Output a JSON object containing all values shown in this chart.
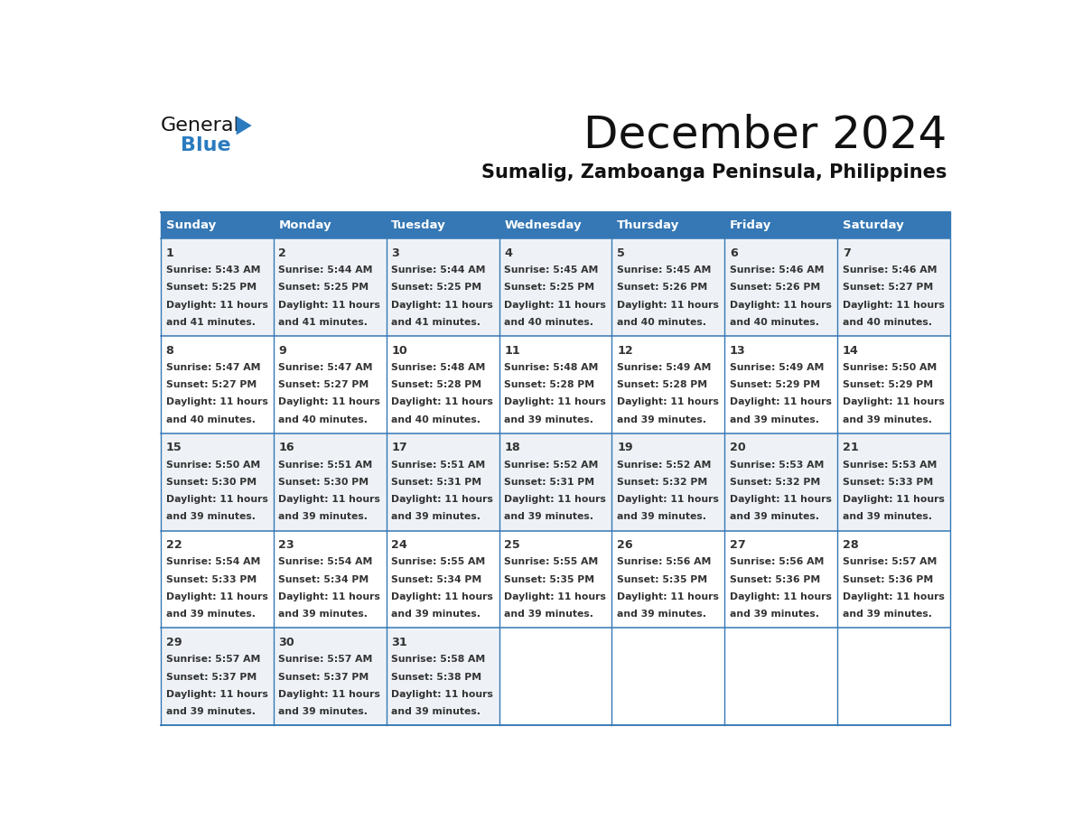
{
  "title": "December 2024",
  "subtitle": "Sumalig, Zamboanga Peninsula, Philippines",
  "header_color": "#3578b5",
  "header_text_color": "#ffffff",
  "cell_bg_color_odd": "#eef2f7",
  "cell_bg_color_even": "#ffffff",
  "text_color": "#333333",
  "border_color": "#3578b5",
  "day_names": [
    "Sunday",
    "Monday",
    "Tuesday",
    "Wednesday",
    "Thursday",
    "Friday",
    "Saturday"
  ],
  "days": [
    {
      "day": 1,
      "col": 0,
      "row": 0,
      "sunrise": "5:43 AM",
      "sunset": "5:25 PM",
      "daylight_h": "11 hours",
      "daylight_m": "and 41 minutes."
    },
    {
      "day": 2,
      "col": 1,
      "row": 0,
      "sunrise": "5:44 AM",
      "sunset": "5:25 PM",
      "daylight_h": "11 hours",
      "daylight_m": "and 41 minutes."
    },
    {
      "day": 3,
      "col": 2,
      "row": 0,
      "sunrise": "5:44 AM",
      "sunset": "5:25 PM",
      "daylight_h": "11 hours",
      "daylight_m": "and 41 minutes."
    },
    {
      "day": 4,
      "col": 3,
      "row": 0,
      "sunrise": "5:45 AM",
      "sunset": "5:25 PM",
      "daylight_h": "11 hours",
      "daylight_m": "and 40 minutes."
    },
    {
      "day": 5,
      "col": 4,
      "row": 0,
      "sunrise": "5:45 AM",
      "sunset": "5:26 PM",
      "daylight_h": "11 hours",
      "daylight_m": "and 40 minutes."
    },
    {
      "day": 6,
      "col": 5,
      "row": 0,
      "sunrise": "5:46 AM",
      "sunset": "5:26 PM",
      "daylight_h": "11 hours",
      "daylight_m": "and 40 minutes."
    },
    {
      "day": 7,
      "col": 6,
      "row": 0,
      "sunrise": "5:46 AM",
      "sunset": "5:27 PM",
      "daylight_h": "11 hours",
      "daylight_m": "and 40 minutes."
    },
    {
      "day": 8,
      "col": 0,
      "row": 1,
      "sunrise": "5:47 AM",
      "sunset": "5:27 PM",
      "daylight_h": "11 hours",
      "daylight_m": "and 40 minutes."
    },
    {
      "day": 9,
      "col": 1,
      "row": 1,
      "sunrise": "5:47 AM",
      "sunset": "5:27 PM",
      "daylight_h": "11 hours",
      "daylight_m": "and 40 minutes."
    },
    {
      "day": 10,
      "col": 2,
      "row": 1,
      "sunrise": "5:48 AM",
      "sunset": "5:28 PM",
      "daylight_h": "11 hours",
      "daylight_m": "and 40 minutes."
    },
    {
      "day": 11,
      "col": 3,
      "row": 1,
      "sunrise": "5:48 AM",
      "sunset": "5:28 PM",
      "daylight_h": "11 hours",
      "daylight_m": "and 39 minutes."
    },
    {
      "day": 12,
      "col": 4,
      "row": 1,
      "sunrise": "5:49 AM",
      "sunset": "5:28 PM",
      "daylight_h": "11 hours",
      "daylight_m": "and 39 minutes."
    },
    {
      "day": 13,
      "col": 5,
      "row": 1,
      "sunrise": "5:49 AM",
      "sunset": "5:29 PM",
      "daylight_h": "11 hours",
      "daylight_m": "and 39 minutes."
    },
    {
      "day": 14,
      "col": 6,
      "row": 1,
      "sunrise": "5:50 AM",
      "sunset": "5:29 PM",
      "daylight_h": "11 hours",
      "daylight_m": "and 39 minutes."
    },
    {
      "day": 15,
      "col": 0,
      "row": 2,
      "sunrise": "5:50 AM",
      "sunset": "5:30 PM",
      "daylight_h": "11 hours",
      "daylight_m": "and 39 minutes."
    },
    {
      "day": 16,
      "col": 1,
      "row": 2,
      "sunrise": "5:51 AM",
      "sunset": "5:30 PM",
      "daylight_h": "11 hours",
      "daylight_m": "and 39 minutes."
    },
    {
      "day": 17,
      "col": 2,
      "row": 2,
      "sunrise": "5:51 AM",
      "sunset": "5:31 PM",
      "daylight_h": "11 hours",
      "daylight_m": "and 39 minutes."
    },
    {
      "day": 18,
      "col": 3,
      "row": 2,
      "sunrise": "5:52 AM",
      "sunset": "5:31 PM",
      "daylight_h": "11 hours",
      "daylight_m": "and 39 minutes."
    },
    {
      "day": 19,
      "col": 4,
      "row": 2,
      "sunrise": "5:52 AM",
      "sunset": "5:32 PM",
      "daylight_h": "11 hours",
      "daylight_m": "and 39 minutes."
    },
    {
      "day": 20,
      "col": 5,
      "row": 2,
      "sunrise": "5:53 AM",
      "sunset": "5:32 PM",
      "daylight_h": "11 hours",
      "daylight_m": "and 39 minutes."
    },
    {
      "day": 21,
      "col": 6,
      "row": 2,
      "sunrise": "5:53 AM",
      "sunset": "5:33 PM",
      "daylight_h": "11 hours",
      "daylight_m": "and 39 minutes."
    },
    {
      "day": 22,
      "col": 0,
      "row": 3,
      "sunrise": "5:54 AM",
      "sunset": "5:33 PM",
      "daylight_h": "11 hours",
      "daylight_m": "and 39 minutes."
    },
    {
      "day": 23,
      "col": 1,
      "row": 3,
      "sunrise": "5:54 AM",
      "sunset": "5:34 PM",
      "daylight_h": "11 hours",
      "daylight_m": "and 39 minutes."
    },
    {
      "day": 24,
      "col": 2,
      "row": 3,
      "sunrise": "5:55 AM",
      "sunset": "5:34 PM",
      "daylight_h": "11 hours",
      "daylight_m": "and 39 minutes."
    },
    {
      "day": 25,
      "col": 3,
      "row": 3,
      "sunrise": "5:55 AM",
      "sunset": "5:35 PM",
      "daylight_h": "11 hours",
      "daylight_m": "and 39 minutes."
    },
    {
      "day": 26,
      "col": 4,
      "row": 3,
      "sunrise": "5:56 AM",
      "sunset": "5:35 PM",
      "daylight_h": "11 hours",
      "daylight_m": "and 39 minutes."
    },
    {
      "day": 27,
      "col": 5,
      "row": 3,
      "sunrise": "5:56 AM",
      "sunset": "5:36 PM",
      "daylight_h": "11 hours",
      "daylight_m": "and 39 minutes."
    },
    {
      "day": 28,
      "col": 6,
      "row": 3,
      "sunrise": "5:57 AM",
      "sunset": "5:36 PM",
      "daylight_h": "11 hours",
      "daylight_m": "and 39 minutes."
    },
    {
      "day": 29,
      "col": 0,
      "row": 4,
      "sunrise": "5:57 AM",
      "sunset": "5:37 PM",
      "daylight_h": "11 hours",
      "daylight_m": "and 39 minutes."
    },
    {
      "day": 30,
      "col": 1,
      "row": 4,
      "sunrise": "5:57 AM",
      "sunset": "5:37 PM",
      "daylight_h": "11 hours",
      "daylight_m": "and 39 minutes."
    },
    {
      "day": 31,
      "col": 2,
      "row": 4,
      "sunrise": "5:58 AM",
      "sunset": "5:38 PM",
      "daylight_h": "11 hours",
      "daylight_m": "and 39 minutes."
    }
  ],
  "logo_text_general": "General",
  "logo_text_blue": "Blue",
  "logo_color_black": "#111111",
  "logo_color_blue": "#2a7bbf",
  "logo_triangle_color": "#2a7bbf"
}
